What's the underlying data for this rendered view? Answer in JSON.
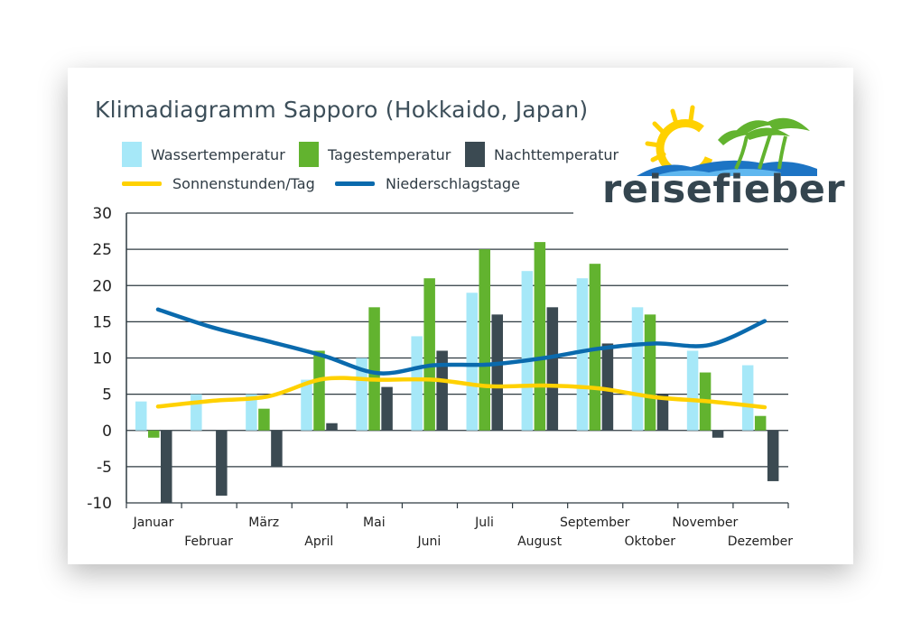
{
  "colors": {
    "water": "#a6e8f8",
    "day": "#62b32f",
    "night": "#3b4a52",
    "sun": "#ffd100",
    "rain": "#0a6aad",
    "grid": "#2e3a41"
  },
  "logo": {
    "text": "reisefieber"
  },
  "chart_data": {
    "type": "bar",
    "title": "Klimadiagramm Sapporo (Hokkaido, Japan)",
    "categories": [
      "Januar",
      "Februar",
      "März",
      "April",
      "Mai",
      "Juni",
      "Juli",
      "August",
      "September",
      "Oktober",
      "November",
      "Dezember"
    ],
    "ylim": [
      -10,
      30
    ],
    "yticks": [
      30,
      25,
      20,
      15,
      10,
      5,
      0,
      -5,
      -10
    ],
    "grid": true,
    "legend_position": "top-left",
    "series": [
      {
        "name": "Wassertemperatur",
        "kind": "bar",
        "values": [
          4,
          5,
          5,
          7,
          10,
          13,
          19,
          22,
          21,
          17,
          11,
          9
        ]
      },
      {
        "name": "Tagestemperatur",
        "kind": "bar",
        "values": [
          -1,
          0,
          3,
          11,
          17,
          21,
          25,
          26,
          23,
          16,
          8,
          2
        ]
      },
      {
        "name": "Nachttemperatur",
        "kind": "bar",
        "values": [
          -10,
          -9,
          -5,
          1,
          6,
          11,
          16,
          17,
          12,
          5,
          -1,
          -7
        ]
      },
      {
        "name": "Sonnenstunden/Tag",
        "kind": "line",
        "values": [
          3.3,
          4.1,
          4.7,
          7.1,
          7.0,
          7.0,
          6.1,
          6.2,
          5.8,
          4.6,
          4.0,
          3.2
        ]
      },
      {
        "name": "Niederschlagstage",
        "kind": "line",
        "values": [
          16.7,
          14.2,
          12.3,
          10.3,
          7.9,
          9.0,
          9.1,
          10.0,
          11.3,
          12.0,
          11.8,
          15.1
        ]
      }
    ]
  }
}
